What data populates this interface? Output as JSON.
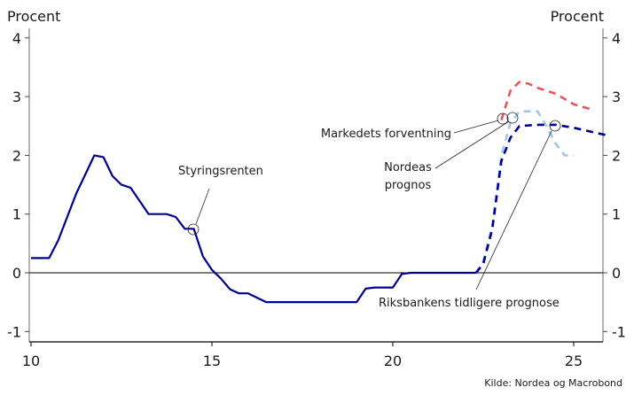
{
  "chart_data": {
    "type": "line",
    "title": "",
    "ylabel_left": "Procent",
    "ylabel_right": "Procent",
    "xlabel": "",
    "xlim": [
      10,
      26
    ],
    "ylim": [
      -1.2,
      4.2
    ],
    "x_ticks": [
      10,
      15,
      20,
      25
    ],
    "y_ticks": [
      -1,
      0,
      1,
      2,
      3,
      4
    ],
    "grid": false,
    "source": "Kilde: Nordea og Macrobond",
    "series": [
      {
        "name": "Styringsrenten",
        "color": "#00008f",
        "style": "solid",
        "points": [
          [
            10.0,
            0.25
          ],
          [
            10.5,
            0.25
          ],
          [
            10.75,
            0.55
          ],
          [
            11.25,
            1.35
          ],
          [
            11.75,
            2.0
          ],
          [
            12.0,
            1.97
          ],
          [
            12.25,
            1.65
          ],
          [
            12.5,
            1.5
          ],
          [
            12.75,
            1.45
          ],
          [
            13.25,
            1.0
          ],
          [
            13.75,
            1.0
          ],
          [
            14.0,
            0.95
          ],
          [
            14.25,
            0.75
          ],
          [
            14.5,
            0.75
          ],
          [
            14.75,
            0.28
          ],
          [
            15.0,
            0.05
          ],
          [
            15.25,
            -0.1
          ],
          [
            15.5,
            -0.28
          ],
          [
            15.75,
            -0.35
          ],
          [
            16.0,
            -0.35
          ],
          [
            16.5,
            -0.5
          ],
          [
            19.0,
            -0.5
          ],
          [
            19.25,
            -0.27
          ],
          [
            19.5,
            -0.25
          ],
          [
            20.0,
            -0.25
          ],
          [
            20.25,
            -0.02
          ],
          [
            20.5,
            0.0
          ],
          [
            22.3,
            0.0
          ]
        ]
      },
      {
        "name": "Riksbankens tidligere prognose",
        "color": "#00008f",
        "style": "dashed",
        "points": [
          [
            22.3,
            0.0
          ],
          [
            22.5,
            0.15
          ],
          [
            22.75,
            0.75
          ],
          [
            23.0,
            1.9
          ],
          [
            23.25,
            2.3
          ],
          [
            23.5,
            2.5
          ],
          [
            24.0,
            2.52
          ],
          [
            24.5,
            2.52
          ],
          [
            25.0,
            2.47
          ],
          [
            25.5,
            2.4
          ],
          [
            26.0,
            2.33
          ]
        ]
      },
      {
        "name": "Nordeas prognos",
        "color": "#9ec8ee",
        "style": "dashed",
        "points": [
          [
            22.3,
            0.0
          ],
          [
            22.5,
            0.2
          ],
          [
            22.75,
            0.8
          ],
          [
            23.0,
            2.0
          ],
          [
            23.25,
            2.55
          ],
          [
            23.5,
            2.75
          ],
          [
            24.0,
            2.75
          ],
          [
            24.25,
            2.5
          ],
          [
            24.5,
            2.2
          ],
          [
            24.75,
            2.0
          ],
          [
            25.0,
            2.0
          ]
        ]
      },
      {
        "name": "Markedets forventning",
        "color": "#e8555a",
        "style": "dashed",
        "points": [
          [
            23.0,
            2.6
          ],
          [
            23.25,
            3.1
          ],
          [
            23.5,
            3.25
          ],
          [
            23.75,
            3.22
          ],
          [
            24.0,
            3.15
          ],
          [
            24.5,
            3.05
          ],
          [
            25.0,
            2.87
          ],
          [
            25.5,
            2.78
          ]
        ]
      }
    ],
    "annotations": [
      {
        "text": "Styringsrenten",
        "marker": [
          14.5,
          0.75
        ]
      },
      {
        "text": "Markedets forventning",
        "marker": [
          23.0,
          2.63
        ]
      },
      {
        "text": "Nordeas prognos",
        "marker": [
          23.3,
          2.65
        ]
      },
      {
        "text": "Riksbankens tidligere prognose",
        "marker": [
          24.5,
          2.52
        ]
      }
    ]
  },
  "labels": {
    "y_left_title": "Procent",
    "y_right_title": "Procent",
    "source": "Kilde: Nordea og Macrobond",
    "ann_styringsrenten": "Styringsrenten",
    "ann_markedets": "Markedets forventning",
    "ann_nordeas_1": "Nordeas",
    "ann_nordeas_2": "prognos",
    "ann_riksbankens": "Riksbankens tidligere prognose"
  }
}
